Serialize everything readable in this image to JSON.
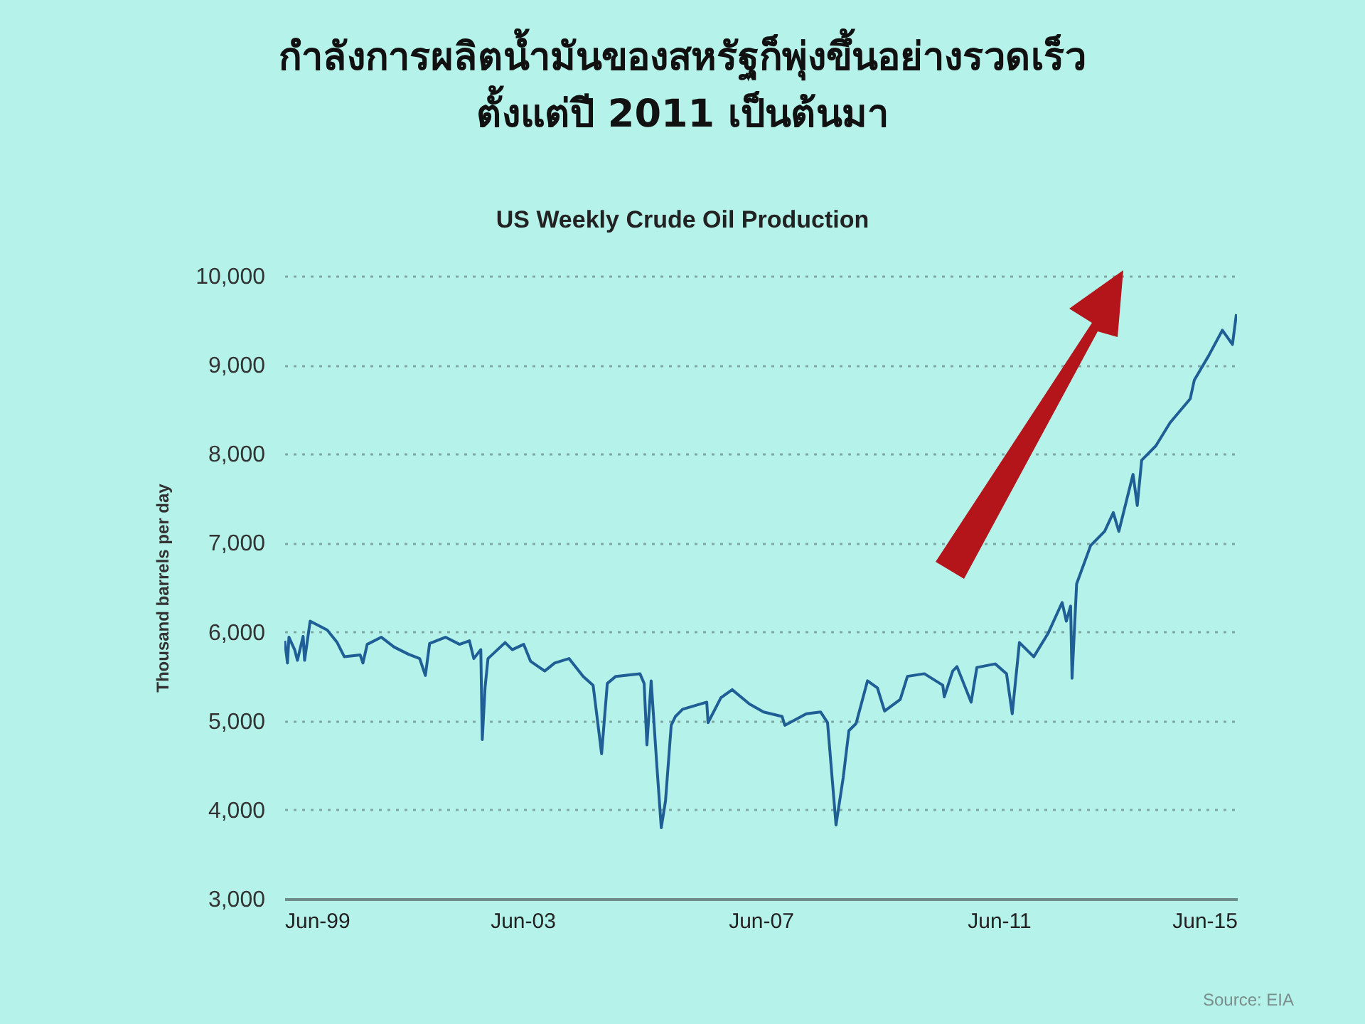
{
  "chart_data": {
    "type": "line",
    "title": "กำลังการผลิตน้ำมันของสหรัฐก็พุ่งขึ้นอย่างรวดเร็ว\nตั้งแต่ปี 2011 เป็นต้นมา",
    "subtitle": "US Weekly Crude Oil Production",
    "ylabel": "Thousand barrels per day",
    "annotations": [
      "Source: EIA"
    ],
    "x": [
      "1999-06-03",
      "1999-06-20",
      "1999-06-29",
      "1999-08-03",
      "1999-08-20",
      "1999-09-24",
      "1999-10-03",
      "1999-11-06",
      "2000-02-19",
      "2000-04-20",
      "2000-06-03",
      "2000-09-08",
      "2000-09-25",
      "2000-10-21",
      "2001-01-16",
      "2001-04-04",
      "2001-06-30",
      "2001-09-08",
      "2001-10-13",
      "2001-11-08",
      "2002-02-13",
      "2002-05-11",
      "2002-07-10",
      "2002-08-06",
      "2002-09-18",
      "2002-09-27",
      "2002-10-14",
      "2002-11-01",
      "2003-02-14",
      "2003-03-30",
      "2003-06-08",
      "2003-07-20",
      "2003-10-15",
      "2003-12-15",
      "2004-03-12",
      "2004-06-07",
      "2004-08-07",
      "2004-09-28",
      "2004-11-02",
      "2004-12-24",
      "2005-05-21",
      "2005-06-16",
      "2005-07-03",
      "2005-07-29",
      "2005-09-03",
      "2005-09-29",
      "2005-10-25",
      "2005-11-29",
      "2005-12-25",
      "2006-02-07",
      "2006-07-05",
      "2006-07-13",
      "2006-09-30",
      "2006-12-08",
      "2007-03-24",
      "2007-06-19",
      "2007-10-10",
      "2007-10-27",
      "2008-03-07",
      "2008-06-02",
      "2008-07-15",
      "2008-09-05",
      "2008-10-19",
      "2008-11-23",
      "2009-01-06",
      "2009-03-17",
      "2009-05-17",
      "2009-06-30",
      "2009-10-04",
      "2009-11-17",
      "2010-03-01",
      "2010-06-22",
      "2010-07-01",
      "2010-08-22",
      "2010-09-17",
      "2010-12-13",
      "2011-01-17",
      "2011-05-10",
      "2011-07-18",
      "2011-08-22",
      "2011-10-05",
      "2012-01-01",
      "2012-03-28",
      "2012-06-23",
      "2012-07-19",
      "2012-08-14",
      "2012-08-23",
      "2012-09-20",
      "2012-12-15",
      "2013-03-11",
      "2013-05-03",
      "2013-06-06",
      "2013-09-01",
      "2013-09-27",
      "2013-10-24",
      "2014-01-19",
      "2014-04-16",
      "2014-08-18",
      "2014-09-12",
      "2014-12-08",
      "2015-03-03",
      "2015-05-04",
      "2015-05-28"
    ],
    "series": [
      {
        "color": "#1f5f96",
        "values": [
          5900,
          5650,
          5940,
          5800,
          5680,
          5950,
          5680,
          6120,
          6020,
          5880,
          5720,
          5740,
          5650,
          5860,
          5940,
          5830,
          5750,
          5700,
          5510,
          5870,
          5940,
          5860,
          5900,
          5700,
          5800,
          4790,
          5370,
          5700,
          5880,
          5800,
          5860,
          5670,
          5560,
          5650,
          5700,
          5500,
          5400,
          4630,
          5420,
          5500,
          5530,
          5420,
          4730,
          5450,
          4470,
          3800,
          4100,
          4950,
          5050,
          5130,
          5210,
          4980,
          5260,
          5350,
          5190,
          5100,
          5050,
          4950,
          5080,
          5100,
          4980,
          3830,
          4360,
          4890,
          4970,
          5450,
          5370,
          5110,
          5240,
          5500,
          5530,
          5400,
          5270,
          5560,
          5610,
          5210,
          5600,
          5640,
          5530,
          5080,
          5880,
          5720,
          5980,
          6330,
          6120,
          6290,
          5480,
          6540,
          6970,
          7130,
          7340,
          7130,
          7770,
          7420,
          7930,
          8090,
          8350,
          8620,
          8830,
          9100,
          9390,
          9230,
          9570
        ]
      }
    ],
    "xlim": [
      "1999-06-01",
      "2015-06-01"
    ],
    "xticks": [
      {
        "value": "1999-06-01",
        "label": "Jun-99"
      },
      {
        "value": "2003-06-01",
        "label": "Jun-03"
      },
      {
        "value": "2007-06-01",
        "label": "Jun-07"
      },
      {
        "value": "2011-06-01",
        "label": "Jun-11"
      },
      {
        "value": "2015-06-01",
        "label": "Jun-15"
      }
    ],
    "ylim": [
      3000,
      10000
    ],
    "yticks": [
      {
        "value": 3000,
        "label": "3,000"
      },
      {
        "value": 4000,
        "label": "4,000"
      },
      {
        "value": 5000,
        "label": "5,000"
      },
      {
        "value": 6000,
        "label": "6,000"
      },
      {
        "value": 7000,
        "label": "7,000"
      },
      {
        "value": 8000,
        "label": "8,000"
      },
      {
        "value": 9000,
        "label": "9,000"
      },
      {
        "value": 10000,
        "label": "10,000"
      }
    ],
    "grid": "y",
    "marker": "none",
    "line_style": "solid"
  }
}
